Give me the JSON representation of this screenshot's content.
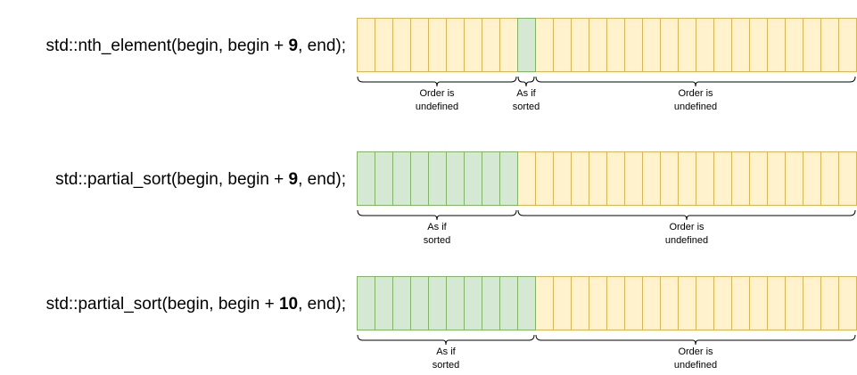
{
  "rows": [
    {
      "call_prefix": "std::nth_element(begin, begin + ",
      "call_number": "9",
      "call_suffix": ", end);",
      "cell_count": 28,
      "segments": [
        {
          "start": 0,
          "end": 9,
          "state": "unordered",
          "label_line1": "Order is",
          "label_line2": "undefined"
        },
        {
          "start": 9,
          "end": 10,
          "state": "sorted",
          "label_line1": "As if",
          "label_line2": "sorted"
        },
        {
          "start": 10,
          "end": 28,
          "state": "unordered",
          "label_line1": "Order is",
          "label_line2": "undefined"
        }
      ]
    },
    {
      "call_prefix": "std::partial_sort(begin, begin + ",
      "call_number": "9",
      "call_suffix": ", end);",
      "cell_count": 28,
      "segments": [
        {
          "start": 0,
          "end": 9,
          "state": "sorted",
          "label_line1": "As if",
          "label_line2": "sorted"
        },
        {
          "start": 9,
          "end": 28,
          "state": "unordered",
          "label_line1": "Order is",
          "label_line2": "undefined"
        }
      ]
    },
    {
      "call_prefix": "std::partial_sort(begin, begin + ",
      "call_number": "10",
      "call_suffix": ", end);",
      "cell_count": 28,
      "segments": [
        {
          "start": 0,
          "end": 10,
          "state": "sorted",
          "label_line1": "As if",
          "label_line2": "sorted"
        },
        {
          "start": 10,
          "end": 28,
          "state": "unordered",
          "label_line1": "Order is",
          "label_line2": "undefined"
        }
      ]
    }
  ],
  "colors": {
    "sorted_fill": "#d5e8d4",
    "sorted_stroke": "#82b366",
    "unordered_fill": "#fff2cc",
    "unordered_stroke": "#d6b656",
    "brace": "#000000"
  }
}
